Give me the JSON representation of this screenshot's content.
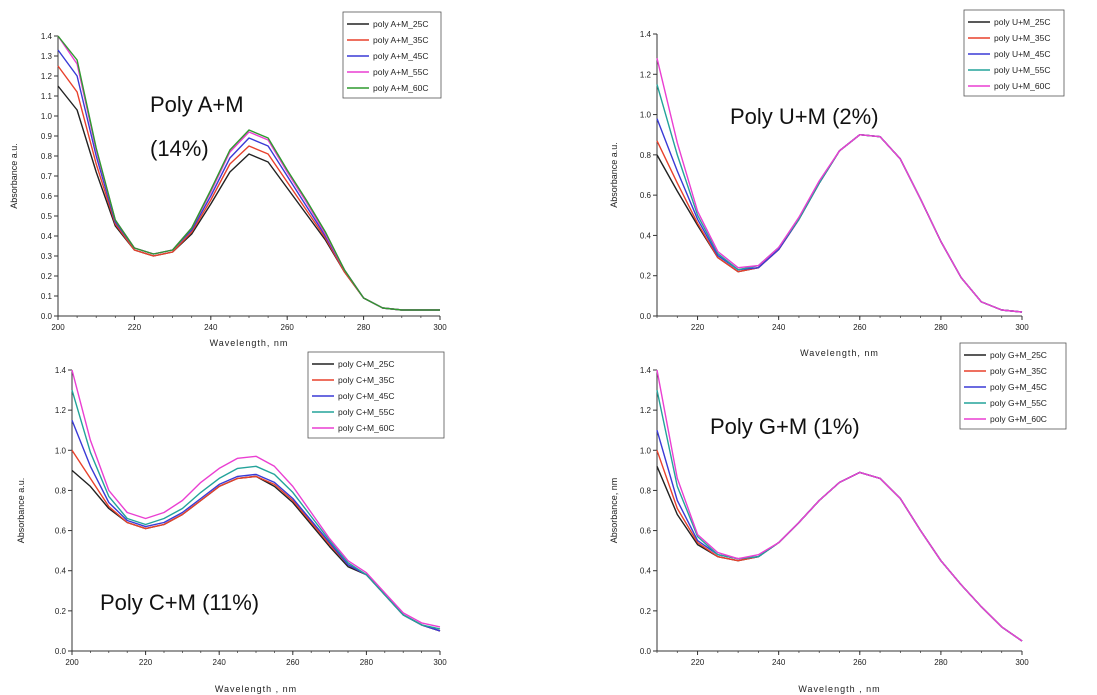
{
  "chart_data": [
    {
      "type": "line",
      "annotation": [
        "Poly A+M",
        "(14%)"
      ],
      "xlabel": "Wavelength, nm",
      "ylabel": "Absorbance a.u.",
      "xlim": [
        200,
        300
      ],
      "ylim": [
        0,
        1.4
      ],
      "xticks": [
        200,
        220,
        240,
        260,
        280,
        300
      ],
      "yticks": [
        0.0,
        0.1,
        0.2,
        0.3,
        0.4,
        0.5,
        0.6,
        0.7,
        0.8,
        0.9,
        1.0,
        1.1,
        1.2,
        1.3,
        1.4
      ],
      "x": [
        200,
        205,
        210,
        215,
        220,
        225,
        230,
        235,
        240,
        245,
        250,
        255,
        260,
        265,
        270,
        275,
        280,
        285,
        290,
        295,
        300
      ],
      "series": [
        {
          "name": "poly A+M_25C",
          "color": "#222222",
          "values": [
            1.15,
            1.03,
            0.72,
            0.45,
            0.33,
            0.3,
            0.32,
            0.41,
            0.56,
            0.72,
            0.81,
            0.77,
            0.64,
            0.51,
            0.38,
            0.22,
            0.09,
            0.04,
            0.03,
            0.03,
            0.03
          ]
        },
        {
          "name": "poly A+M_35C",
          "color": "#e8412c",
          "values": [
            1.25,
            1.12,
            0.76,
            0.46,
            0.33,
            0.3,
            0.32,
            0.42,
            0.58,
            0.76,
            0.85,
            0.81,
            0.67,
            0.53,
            0.39,
            0.22,
            0.09,
            0.04,
            0.03,
            0.03,
            0.03
          ]
        },
        {
          "name": "poly A+M_45C",
          "color": "#3a3ad6",
          "values": [
            1.33,
            1.2,
            0.8,
            0.47,
            0.34,
            0.31,
            0.33,
            0.43,
            0.6,
            0.79,
            0.89,
            0.85,
            0.7,
            0.55,
            0.4,
            0.23,
            0.09,
            0.04,
            0.03,
            0.03,
            0.03
          ]
        },
        {
          "name": "poly A+M_55C",
          "color": "#ea3fd2",
          "values": [
            1.4,
            1.26,
            0.83,
            0.48,
            0.34,
            0.31,
            0.33,
            0.44,
            0.62,
            0.82,
            0.92,
            0.88,
            0.72,
            0.57,
            0.41,
            0.23,
            0.09,
            0.04,
            0.03,
            0.03,
            0.03
          ]
        },
        {
          "name": "poly A+M_60C",
          "color": "#2e9a2e",
          "values": [
            1.4,
            1.28,
            0.84,
            0.48,
            0.34,
            0.31,
            0.33,
            0.44,
            0.63,
            0.83,
            0.93,
            0.89,
            0.73,
            0.58,
            0.42,
            0.23,
            0.09,
            0.04,
            0.03,
            0.03,
            0.03
          ]
        }
      ]
    },
    {
      "type": "line",
      "annotation": [
        "Poly U+M (2%)"
      ],
      "xlabel": "Wavelength, nm",
      "ylabel": "Absorbance a.u.",
      "xlim": [
        210,
        300
      ],
      "ylim": [
        0,
        1.4
      ],
      "xticks": [
        220,
        240,
        260,
        280,
        300
      ],
      "yticks": [
        0.0,
        0.2,
        0.4,
        0.6,
        0.8,
        1.0,
        1.2,
        1.4
      ],
      "x": [
        210,
        215,
        220,
        225,
        230,
        235,
        240,
        245,
        250,
        255,
        260,
        265,
        270,
        275,
        280,
        285,
        290,
        295,
        300
      ],
      "series": [
        {
          "name": "poly U+M_25C",
          "color": "#222222",
          "values": [
            0.8,
            0.62,
            0.45,
            0.29,
            0.22,
            0.24,
            0.33,
            0.48,
            0.66,
            0.82,
            0.9,
            0.89,
            0.78,
            0.58,
            0.37,
            0.19,
            0.07,
            0.03,
            0.02
          ]
        },
        {
          "name": "poly U+M_35C",
          "color": "#e8412c",
          "values": [
            0.87,
            0.66,
            0.46,
            0.29,
            0.22,
            0.24,
            0.33,
            0.48,
            0.66,
            0.82,
            0.9,
            0.89,
            0.78,
            0.58,
            0.37,
            0.19,
            0.07,
            0.03,
            0.02
          ]
        },
        {
          "name": "poly U+M_45C",
          "color": "#3a3ad6",
          "values": [
            0.98,
            0.72,
            0.48,
            0.3,
            0.23,
            0.24,
            0.33,
            0.48,
            0.66,
            0.82,
            0.9,
            0.89,
            0.78,
            0.58,
            0.37,
            0.19,
            0.07,
            0.03,
            0.02
          ]
        },
        {
          "name": "poly U+M_55C",
          "color": "#23a39a",
          "values": [
            1.15,
            0.8,
            0.5,
            0.31,
            0.23,
            0.25,
            0.34,
            0.48,
            0.66,
            0.82,
            0.9,
            0.89,
            0.78,
            0.58,
            0.37,
            0.19,
            0.07,
            0.03,
            0.02
          ]
        },
        {
          "name": "poly U+M_60C",
          "color": "#ea3fd2",
          "values": [
            1.28,
            0.86,
            0.52,
            0.32,
            0.24,
            0.25,
            0.34,
            0.49,
            0.67,
            0.82,
            0.9,
            0.89,
            0.78,
            0.58,
            0.37,
            0.19,
            0.07,
            0.03,
            0.02
          ]
        }
      ]
    },
    {
      "type": "line",
      "annotation": [
        "Poly C+M (11%)"
      ],
      "xlabel": "Wavelength , nm",
      "ylabel": "Absorbance a.u.",
      "xlim": [
        200,
        300
      ],
      "ylim": [
        0,
        1.4
      ],
      "xticks": [
        200,
        220,
        240,
        260,
        280,
        300
      ],
      "yticks": [
        0.0,
        0.2,
        0.4,
        0.6,
        0.8,
        1.0,
        1.2,
        1.4
      ],
      "x": [
        200,
        205,
        210,
        215,
        220,
        225,
        230,
        235,
        240,
        245,
        250,
        255,
        260,
        265,
        270,
        275,
        280,
        285,
        290,
        295,
        300
      ],
      "series": [
        {
          "name": "poly C+M_25C",
          "color": "#222222",
          "values": [
            0.9,
            0.82,
            0.71,
            0.64,
            0.61,
            0.63,
            0.68,
            0.75,
            0.82,
            0.86,
            0.87,
            0.82,
            0.74,
            0.63,
            0.52,
            0.42,
            0.38,
            0.28,
            0.18,
            0.13,
            0.1
          ]
        },
        {
          "name": "poly C+M_35C",
          "color": "#e8412c",
          "values": [
            1.0,
            0.86,
            0.72,
            0.64,
            0.61,
            0.63,
            0.68,
            0.75,
            0.82,
            0.86,
            0.87,
            0.83,
            0.75,
            0.64,
            0.53,
            0.43,
            0.38,
            0.28,
            0.18,
            0.13,
            0.1
          ]
        },
        {
          "name": "poly C+M_45C",
          "color": "#3a3ad6",
          "values": [
            1.15,
            0.92,
            0.74,
            0.65,
            0.62,
            0.64,
            0.69,
            0.76,
            0.83,
            0.87,
            0.88,
            0.84,
            0.76,
            0.65,
            0.54,
            0.43,
            0.38,
            0.28,
            0.18,
            0.13,
            0.1
          ]
        },
        {
          "name": "poly C+M_55C",
          "color": "#23a39a",
          "values": [
            1.3,
            0.99,
            0.77,
            0.66,
            0.63,
            0.66,
            0.71,
            0.79,
            0.86,
            0.91,
            0.92,
            0.88,
            0.79,
            0.67,
            0.55,
            0.44,
            0.38,
            0.28,
            0.18,
            0.13,
            0.11
          ]
        },
        {
          "name": "poly C+M_60C",
          "color": "#ea3fd2",
          "values": [
            1.4,
            1.05,
            0.8,
            0.69,
            0.66,
            0.69,
            0.75,
            0.84,
            0.91,
            0.96,
            0.97,
            0.92,
            0.82,
            0.69,
            0.56,
            0.45,
            0.39,
            0.29,
            0.19,
            0.14,
            0.12
          ]
        }
      ]
    },
    {
      "type": "line",
      "annotation": [
        "Poly G+M (1%)"
      ],
      "xlabel": "Wavelength , nm",
      "ylabel": "Absorbance, nm",
      "xlim": [
        210,
        300
      ],
      "ylim": [
        0,
        1.4
      ],
      "xticks": [
        220,
        240,
        260,
        280,
        300
      ],
      "yticks": [
        0.0,
        0.2,
        0.4,
        0.6,
        0.8,
        1.0,
        1.2,
        1.4
      ],
      "x": [
        210,
        215,
        220,
        225,
        230,
        235,
        240,
        245,
        250,
        255,
        260,
        265,
        270,
        275,
        280,
        285,
        290,
        295,
        300
      ],
      "series": [
        {
          "name": "poly G+M_25C",
          "color": "#222222",
          "values": [
            0.92,
            0.68,
            0.53,
            0.47,
            0.45,
            0.47,
            0.54,
            0.64,
            0.75,
            0.84,
            0.89,
            0.86,
            0.76,
            0.6,
            0.45,
            0.33,
            0.22,
            0.12,
            0.05
          ]
        },
        {
          "name": "poly G+M_35C",
          "color": "#e8412c",
          "values": [
            1.0,
            0.71,
            0.54,
            0.47,
            0.45,
            0.47,
            0.54,
            0.64,
            0.75,
            0.84,
            0.89,
            0.86,
            0.76,
            0.6,
            0.45,
            0.33,
            0.22,
            0.12,
            0.05
          ]
        },
        {
          "name": "poly G+M_45C",
          "color": "#3a3ad6",
          "values": [
            1.1,
            0.75,
            0.55,
            0.48,
            0.46,
            0.47,
            0.54,
            0.64,
            0.75,
            0.84,
            0.89,
            0.86,
            0.76,
            0.6,
            0.45,
            0.33,
            0.22,
            0.12,
            0.05
          ]
        },
        {
          "name": "poly G+M_55C",
          "color": "#23a39a",
          "values": [
            1.3,
            0.82,
            0.57,
            0.48,
            0.46,
            0.47,
            0.54,
            0.64,
            0.75,
            0.84,
            0.89,
            0.86,
            0.76,
            0.6,
            0.45,
            0.33,
            0.22,
            0.12,
            0.05
          ]
        },
        {
          "name": "poly G+M_60C",
          "color": "#ea3fd2",
          "values": [
            1.4,
            0.86,
            0.58,
            0.49,
            0.46,
            0.48,
            0.54,
            0.64,
            0.75,
            0.84,
            0.89,
            0.86,
            0.76,
            0.6,
            0.45,
            0.33,
            0.22,
            0.12,
            0.05
          ]
        }
      ]
    }
  ]
}
